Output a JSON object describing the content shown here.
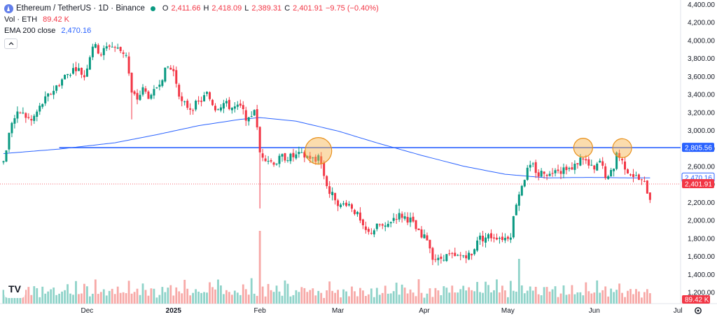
{
  "header": {
    "symbol_title": "Ethereum / TetherUS · 1D · Binance",
    "open_label": "O",
    "open": "2,411.66",
    "high_label": "H",
    "high": "2,418.09",
    "low_label": "L",
    "low": "2,389.31",
    "close_label": "C",
    "close": "2,401.91",
    "change": "−9.75 (−0.40%)",
    "vol_label": "Vol · ETH",
    "vol_value": "89.42 K",
    "ema_label": "EMA 200 close",
    "ema_value": "2,470.16",
    "collapse_icon": "chevron-up-icon",
    "logo_text": "TV"
  },
  "colors": {
    "up": "#089981",
    "down": "#f23645",
    "vol_up": "#8fd3c9",
    "vol_down": "#f7a9a7",
    "ema": "#2962ff",
    "hline": "#2962ff",
    "highlight": "#f7b24a"
  },
  "chart_data": {
    "type": "candlestick",
    "symbol": "ETHUSDT",
    "interval": "1D",
    "ylim": [
      1150,
      4400
    ],
    "y_ticks": [
      4400,
      4200,
      4000,
      3800,
      3600,
      3400,
      3200,
      3000,
      2800,
      2600,
      2400,
      2200,
      2000,
      1800,
      1600,
      1400,
      1200
    ],
    "y_tick_labels": [
      "4,400.00",
      "4,200.00",
      "4,000.00",
      "3,800.00",
      "3,600.00",
      "3,400.00",
      "3,200.00",
      "3,000.00",
      "2,800.00",
      "2,600.00",
      "2,400.00",
      "2,200.00",
      "2,000.00",
      "1,800.00",
      "1,600.00",
      "1,400.00",
      "1,200.00"
    ],
    "x_ticks": [
      {
        "label": "Dec",
        "index": 30,
        "bold": false
      },
      {
        "label": "2025",
        "index": 61,
        "bold": true
      },
      {
        "label": "Feb",
        "index": 92,
        "bold": false
      },
      {
        "label": "Mar",
        "index": 120,
        "bold": false
      },
      {
        "label": "Apr",
        "index": 151,
        "bold": false
      },
      {
        "label": "May",
        "index": 181,
        "bold": false
      },
      {
        "label": "Jun",
        "index": 212,
        "bold": false
      },
      {
        "label": "Jul",
        "index": 242,
        "bold": false
      }
    ],
    "close_anchors": [
      [
        0,
        2650
      ],
      [
        3,
        3100
      ],
      [
        6,
        3200
      ],
      [
        10,
        3100
      ],
      [
        14,
        3300
      ],
      [
        18,
        3450
      ],
      [
        22,
        3600
      ],
      [
        26,
        3700
      ],
      [
        29,
        3600
      ],
      [
        32,
        3950
      ],
      [
        35,
        3850
      ],
      [
        38,
        3950
      ],
      [
        41,
        3900
      ],
      [
        44,
        3850
      ],
      [
        46,
        3400
      ],
      [
        48,
        3350
      ],
      [
        50,
        3450
      ],
      [
        53,
        3350
      ],
      [
        56,
        3550
      ],
      [
        59,
        3700
      ],
      [
        61,
        3650
      ],
      [
        64,
        3300
      ],
      [
        67,
        3250
      ],
      [
        70,
        3300
      ],
      [
        73,
        3400
      ],
      [
        76,
        3250
      ],
      [
        79,
        3300
      ],
      [
        82,
        3250
      ],
      [
        85,
        3250
      ],
      [
        88,
        3100
      ],
      [
        90,
        3250
      ],
      [
        91,
        3000
      ],
      [
        92,
        2750
      ],
      [
        94,
        2700
      ],
      [
        96,
        2650
      ],
      [
        98,
        2650
      ],
      [
        100,
        2700
      ],
      [
        103,
        2700
      ],
      [
        106,
        2720
      ],
      [
        110,
        2700
      ],
      [
        112,
        2650
      ],
      [
        113,
        2750
      ],
      [
        115,
        2500
      ],
      [
        117,
        2300
      ],
      [
        119,
        2250
      ],
      [
        121,
        2150
      ],
      [
        123,
        2200
      ],
      [
        125,
        2150
      ],
      [
        127,
        2050
      ],
      [
        129,
        1900
      ],
      [
        131,
        1850
      ],
      [
        133,
        1900
      ],
      [
        135,
        1950
      ],
      [
        137,
        1900
      ],
      [
        139,
        2000
      ],
      [
        141,
        2050
      ],
      [
        143,
        2050
      ],
      [
        146,
        2000
      ],
      [
        148,
        1900
      ],
      [
        150,
        1800
      ],
      [
        152,
        1800
      ],
      [
        154,
        1600
      ],
      [
        156,
        1550
      ],
      [
        158,
        1600
      ],
      [
        160,
        1600
      ],
      [
        162,
        1580
      ],
      [
        164,
        1600
      ],
      [
        166,
        1620
      ],
      [
        168,
        1600
      ],
      [
        170,
        1800
      ],
      [
        172,
        1800
      ],
      [
        174,
        1820
      ],
      [
        177,
        1820
      ],
      [
        180,
        1800
      ],
      [
        182,
        1850
      ],
      [
        184,
        2200
      ],
      [
        186,
        2400
      ],
      [
        188,
        2550
      ],
      [
        190,
        2600
      ],
      [
        192,
        2500
      ],
      [
        194,
        2550
      ],
      [
        196,
        2500
      ],
      [
        198,
        2600
      ],
      [
        200,
        2550
      ],
      [
        202,
        2600
      ],
      [
        204,
        2550
      ],
      [
        206,
        2650
      ],
      [
        208,
        2700
      ],
      [
        210,
        2600
      ],
      [
        212,
        2550
      ],
      [
        214,
        2650
      ],
      [
        216,
        2500
      ],
      [
        217,
        2450
      ],
      [
        219,
        2600
      ],
      [
        220,
        2750
      ],
      [
        222,
        2650
      ],
      [
        224,
        2550
      ],
      [
        226,
        2500
      ],
      [
        228,
        2450
      ],
      [
        230,
        2400
      ],
      [
        232,
        2250
      ],
      [
        233,
        2200
      ],
      [
        234,
        2401.91
      ]
    ],
    "ema200_anchors": [
      [
        0,
        2740
      ],
      [
        20,
        2790
      ],
      [
        40,
        2860
      ],
      [
        55,
        2950
      ],
      [
        70,
        3050
      ],
      [
        85,
        3120
      ],
      [
        92,
        3140
      ],
      [
        105,
        3100
      ],
      [
        120,
        2990
      ],
      [
        135,
        2850
      ],
      [
        150,
        2720
      ],
      [
        165,
        2600
      ],
      [
        180,
        2510
      ],
      [
        195,
        2470
      ],
      [
        210,
        2475
      ],
      [
        225,
        2470
      ],
      [
        234,
        2470.16
      ]
    ],
    "horizontal_line": 2805.56,
    "horizontal_line_start_index": 20,
    "highlight_markers": [
      {
        "index": 113,
        "price": 2770
      },
      {
        "index": 208,
        "price": 2805
      },
      {
        "index": 222,
        "price": 2800
      }
    ],
    "volume_pattern": [
      0.45,
      0.3,
      0.55,
      0.4,
      0.35,
      0.62,
      0.5,
      0.28,
      0.42,
      0.58,
      0.33,
      0.47
    ],
    "price_labels": [
      {
        "price": 2805.56,
        "text": "2,805.56",
        "style": "line"
      },
      {
        "price": 2470.16,
        "text": "2,470.16",
        "style": "ema"
      },
      {
        "price": 2401.91,
        "text": "2,401.91",
        "style": "close"
      }
    ],
    "volume_label": "89.42 K",
    "settings_icon": "gear-icon"
  }
}
